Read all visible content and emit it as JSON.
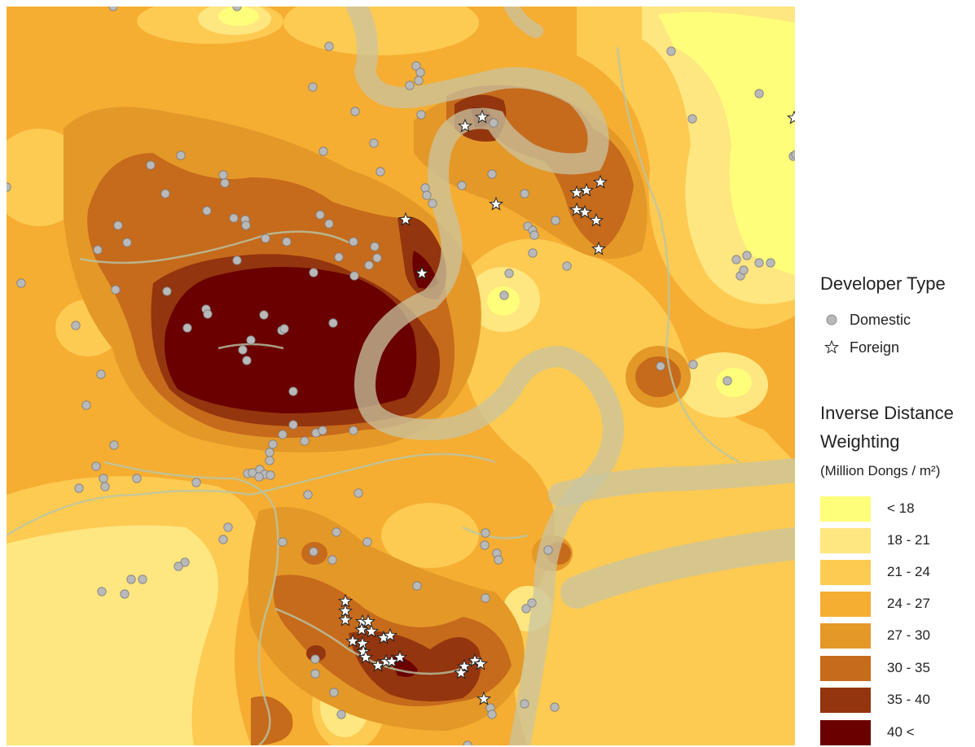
{
  "legend": {
    "developer_title": "Developer Type",
    "developer_items": [
      {
        "label": "Domestic",
        "symbol": "circle",
        "color": "#b9b9b9"
      },
      {
        "label": "Foreign",
        "symbol": "star",
        "color": "#ffffff"
      }
    ],
    "idw_title_line1": "Inverse Distance",
    "idw_title_line2": "Weighting",
    "idw_units": "(Million Dongs / m²)",
    "classes": [
      {
        "label": "< 18",
        "color": "#fefe7a"
      },
      {
        "label": "18 - 21",
        "color": "#fee680"
      },
      {
        "label": "21 - 24",
        "color": "#fdca52"
      },
      {
        "label": "24 - 27",
        "color": "#f5ad32"
      },
      {
        "label": "27 - 30",
        "color": "#e49828"
      },
      {
        "label": "30 - 35",
        "color": "#c66a1c"
      },
      {
        "label": "35 - 40",
        "color": "#93350e"
      },
      {
        "label": "40 <",
        "color": "#6a0000"
      }
    ]
  },
  "map": {
    "river_color": "#c9c4a0",
    "road_color": "#b8c5a8"
  }
}
